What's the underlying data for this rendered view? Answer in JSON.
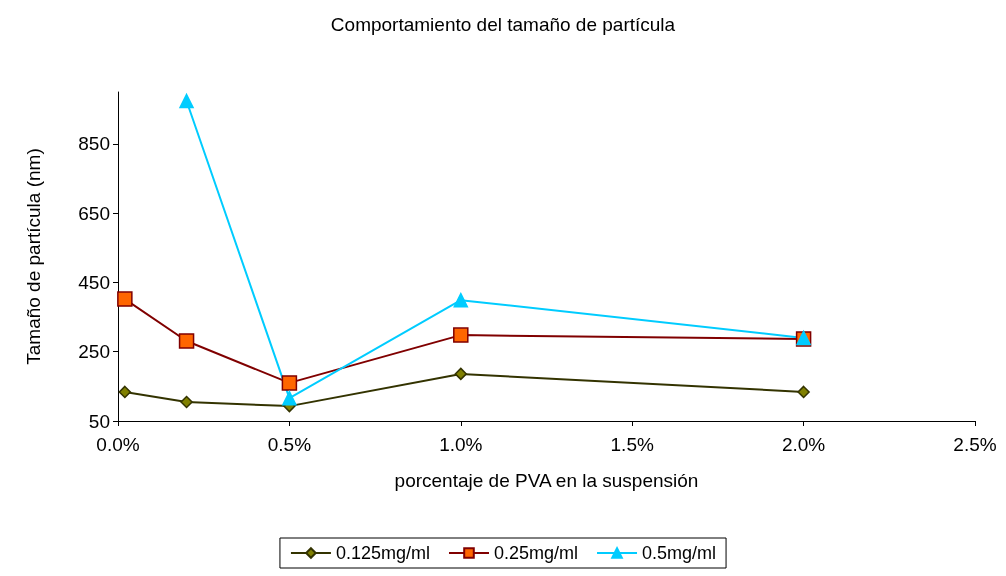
{
  "chart_data": {
    "type": "line",
    "title": "Comportamiento del tamaño de partícula",
    "xlabel": "porcentaje de PVA en la suspensión",
    "ylabel": "Tamaño de partícula (nm)",
    "xlim": [
      0,
      0.025
    ],
    "xticks": [
      {
        "value": 0,
        "label": "0.0%"
      },
      {
        "value": 0.005,
        "label": "0.5%"
      },
      {
        "value": 0.01,
        "label": "1.0%"
      },
      {
        "value": 0.015,
        "label": "1.5%"
      },
      {
        "value": 0.02,
        "label": "2.0%"
      },
      {
        "value": 0.025,
        "label": "2.5%"
      }
    ],
    "ylim": [
      50,
      1000
    ],
    "yticks": [
      50,
      250,
      450,
      650,
      850
    ],
    "grid": false,
    "legend": "bottom",
    "series": [
      {
        "name": "0.125mg/ml",
        "color": "#333300",
        "marker": "diamond",
        "x": [
          0.0002,
          0.002,
          0.005,
          0.01,
          0.02
        ],
        "values": [
          134,
          105,
          93,
          186,
          134
        ]
      },
      {
        "name": "0.25mg/ml",
        "color": "#800000",
        "marker": "square",
        "x": [
          0.0002,
          0.002,
          0.005,
          0.01,
          0.02
        ],
        "values": [
          402,
          281,
          160,
          298,
          287
        ]
      },
      {
        "name": "0.5mg/ml",
        "color": "#00ccff",
        "marker": "triangle",
        "x": [
          0.002,
          0.005,
          0.01,
          0.02
        ],
        "values": [
          974,
          116,
          399,
          290
        ]
      }
    ]
  }
}
